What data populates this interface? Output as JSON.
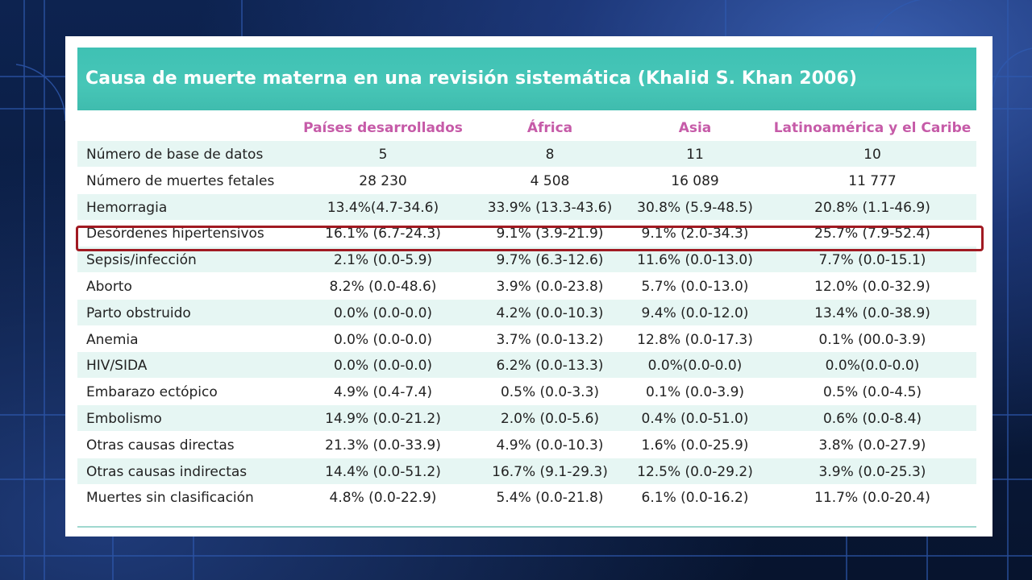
{
  "title": "Causa de muerte materna en una revisión sistemática (Khalid S. Khan 2006)",
  "colors": {
    "header_bg": "#45c4b6",
    "column_header_text": "#c65ba8",
    "highlight_border": "#a11a22",
    "row_shade": "#e6f6f3"
  },
  "columns": [
    "Países desarrollados",
    "África",
    "Asia",
    "Latinoamérica y el Caribe"
  ],
  "rows": [
    {
      "label": "Número de base de datos",
      "values": [
        "5",
        "8",
        "11",
        "10"
      ]
    },
    {
      "label": "Número de muertes fetales",
      "values": [
        "28 230",
        "4 508",
        "16 089",
        "11 777"
      ]
    },
    {
      "label": "Hemorragia",
      "values": [
        "13.4%(4.7-34.6)",
        "33.9% (13.3-43.6)",
        "30.8% (5.9-48.5)",
        "20.8% (1.1-46.9)"
      ]
    },
    {
      "label": "Desórdenes hipertensivos",
      "values": [
        "16.1% (6.7-24.3)",
        "9.1% (3.9-21.9)",
        "9.1% (2.0-34.3)",
        "25.7% (7.9-52.4)"
      ]
    },
    {
      "label": "Sepsis/infección",
      "values": [
        "2.1% (0.0-5.9)",
        "9.7% (6.3-12.6)",
        "11.6% (0.0-13.0)",
        "7.7% (0.0-15.1)"
      ]
    },
    {
      "label": "Aborto",
      "values": [
        "8.2% (0.0-48.6)",
        "3.9% (0.0-23.8)",
        "5.7% (0.0-13.0)",
        "12.0% (0.0-32.9)"
      ]
    },
    {
      "label": "Parto obstruido",
      "values": [
        "0.0% (0.0-0.0)",
        "4.2% (0.0-10.3)",
        "9.4% (0.0-12.0)",
        "13.4% (0.0-38.9)"
      ]
    },
    {
      "label": "Anemia",
      "values": [
        "0.0% (0.0-0.0)",
        "3.7% (0.0-13.2)",
        "12.8% (0.0-17.3)",
        "0.1% (00.0-3.9)"
      ]
    },
    {
      "label": "HIV/SIDA",
      "values": [
        "0.0% (0.0-0.0)",
        "6.2% (0.0-13.3)",
        "0.0%(0.0-0.0)",
        "0.0%(0.0-0.0)"
      ]
    },
    {
      "label": "Embarazo ectópico",
      "values": [
        "4.9% (0.4-7.4)",
        "0.5% (0.0-3.3)",
        "0.1% (0.0-3.9)",
        "0.5% (0.0-4.5)"
      ]
    },
    {
      "label": "Embolismo",
      "values": [
        "14.9% (0.0-21.2)",
        "2.0% (0.0-5.6)",
        "0.4% (0.0-51.0)",
        "0.6% (0.0-8.4)"
      ]
    },
    {
      "label": "Otras causas directas",
      "values": [
        "21.3% (0.0-33.9)",
        "4.9% (0.0-10.3)",
        "1.6% (0.0-25.9)",
        "3.8% (0.0-27.9)"
      ]
    },
    {
      "label": "Otras causas indirectas",
      "values": [
        "14.4% (0.0-51.2)",
        "16.7% (9.1-29.3)",
        "12.5% (0.0-29.2)",
        "3.9% (0.0-25.3)"
      ]
    },
    {
      "label": "Muertes sin clasificación",
      "values": [
        "4.8% (0.0-22.9)",
        "5.4% (0.0-21.8)",
        "6.1% (0.0-16.2)",
        "11.7% (0.0-20.4)"
      ]
    }
  ],
  "highlighted_row_label": "Desórdenes hipertensivos"
}
